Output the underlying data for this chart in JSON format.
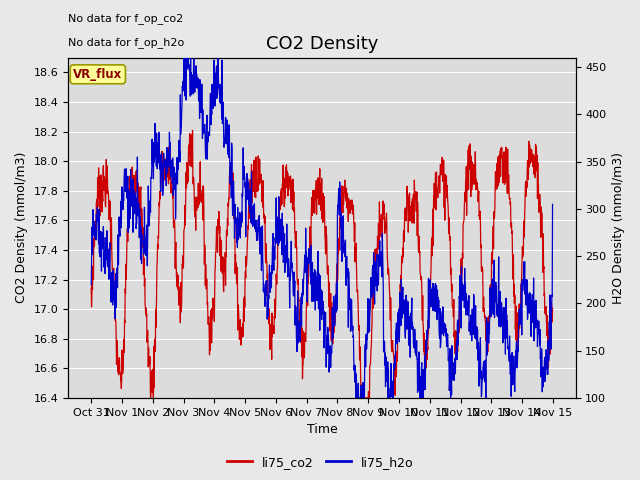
{
  "title": "CO2 Density",
  "xlabel": "Time",
  "ylabel_left": "CO2 Density (mmol/m3)",
  "ylabel_right": "H2O Density (mmol/m3)",
  "text_no_data_line1": "No data for f_op_co2",
  "text_no_data_line2": "No data for f_op_h2o",
  "vr_flux_label": "VR_flux",
  "legend_labels": [
    "li75_co2",
    "li75_h2o"
  ],
  "co2_color": "#CC0000",
  "h2o_color": "#0000CC",
  "ylim_left": [
    16.4,
    18.7
  ],
  "ylim_right": [
    100,
    460
  ],
  "plot_bg_color": "#DCDCDC",
  "grid_color": "#FFFFFF",
  "title_fontsize": 13,
  "label_fontsize": 9,
  "tick_fontsize": 8,
  "legend_fontsize": 9,
  "yticks_left": [
    16.4,
    16.6,
    16.8,
    17.0,
    17.2,
    17.4,
    17.6,
    17.8,
    18.0,
    18.2,
    18.4,
    18.6
  ],
  "yticks_right": [
    100,
    150,
    200,
    250,
    300,
    350,
    400,
    450
  ],
  "tick_labels_x": [
    "Oct 31",
    "Nov 1",
    "Nov 2",
    "Nov 3",
    "Nov 4",
    "Nov 5",
    "Nov 6",
    "Nov 7",
    "Nov 8",
    "Nov 9",
    "Nov 10",
    "Nov 11",
    "Nov 12",
    "Nov 13",
    "Nov 14",
    "Nov 15"
  ]
}
